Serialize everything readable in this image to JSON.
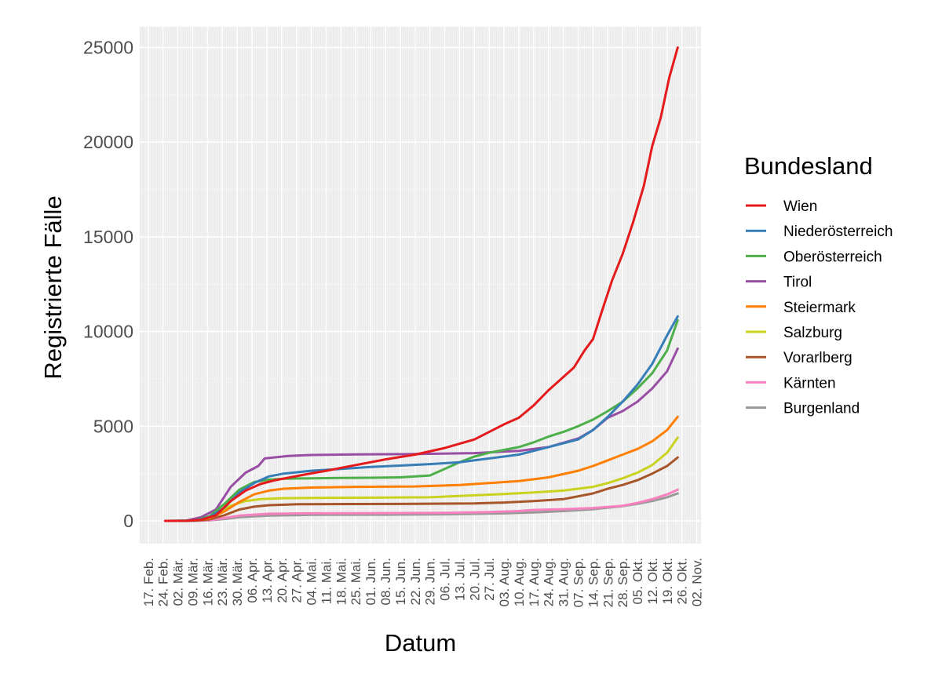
{
  "chart_data": {
    "type": "line",
    "title": "",
    "xlabel": "Datum",
    "ylabel": "Registrierte Fälle",
    "x_type": "date",
    "xlim": [
      "2020-02-13",
      "2020-11-04"
    ],
    "ylim": [
      -1200,
      26100
    ],
    "grid": true,
    "legend_position": "right",
    "legend_title": "Bundesland",
    "y_ticks": [
      0,
      5000,
      10000,
      15000,
      20000,
      25000
    ],
    "y_tick_labels": [
      "0",
      "5000",
      "10000",
      "15000",
      "20000",
      "25000"
    ],
    "x_ticks": [
      "2020-02-17",
      "2020-02-24",
      "2020-03-02",
      "2020-03-09",
      "2020-03-16",
      "2020-03-23",
      "2020-03-30",
      "2020-04-06",
      "2020-04-13",
      "2020-04-20",
      "2020-04-27",
      "2020-05-04",
      "2020-05-11",
      "2020-05-18",
      "2020-05-25",
      "2020-06-01",
      "2020-06-08",
      "2020-06-15",
      "2020-06-22",
      "2020-06-29",
      "2020-07-06",
      "2020-07-13",
      "2020-07-20",
      "2020-07-27",
      "2020-08-03",
      "2020-08-10",
      "2020-08-17",
      "2020-08-24",
      "2020-08-31",
      "2020-09-07",
      "2020-09-14",
      "2020-09-21",
      "2020-09-28",
      "2020-10-05",
      "2020-10-12",
      "2020-10-19",
      "2020-10-26",
      "2020-11-02"
    ],
    "x_tick_labels": [
      "17. Feb.",
      "24. Feb.",
      "02. Mär.",
      "09. Mär.",
      "16. Mär.",
      "23. Mär.",
      "30. Mär.",
      "06. Apr.",
      "13. Apr.",
      "20. Apr.",
      "27. Apr.",
      "04. Mai.",
      "11. Mai.",
      "18. Mai.",
      "25. Mai.",
      "01. Jun.",
      "08. Jun.",
      "15. Jun.",
      "22. Jun.",
      "29. Jun.",
      "06. Jul.",
      "13. Jul.",
      "20. Jul.",
      "27. Jul.",
      "03. Aug.",
      "10. Aug.",
      "17. Aug.",
      "24. Aug.",
      "31. Aug.",
      "07. Sep.",
      "14. Sep.",
      "21. Sep.",
      "28. Sep.",
      "05. Okt.",
      "12. Okt.",
      "19. Okt.",
      "26. Okt.",
      "02. Nov."
    ],
    "series": [
      {
        "name": "Wien",
        "color": "#e41a1c",
        "points": [
          [
            "2020-02-25",
            0
          ],
          [
            "2020-03-06",
            5
          ],
          [
            "2020-03-13",
            60
          ],
          [
            "2020-03-20",
            300
          ],
          [
            "2020-03-27",
            1050
          ],
          [
            "2020-04-03",
            1600
          ],
          [
            "2020-04-10",
            1950
          ],
          [
            "2020-04-17",
            2150
          ],
          [
            "2020-04-24",
            2300
          ],
          [
            "2020-05-01",
            2450
          ],
          [
            "2020-05-11",
            2650
          ],
          [
            "2020-05-25",
            2950
          ],
          [
            "2020-06-08",
            3250
          ],
          [
            "2020-06-22",
            3500
          ],
          [
            "2020-07-06",
            3850
          ],
          [
            "2020-07-20",
            4300
          ],
          [
            "2020-07-27",
            4700
          ],
          [
            "2020-08-03",
            5100
          ],
          [
            "2020-08-10",
            5450
          ],
          [
            "2020-08-17",
            6100
          ],
          [
            "2020-08-24",
            6900
          ],
          [
            "2020-08-31",
            7600
          ],
          [
            "2020-09-05",
            8100
          ],
          [
            "2020-09-10",
            9000
          ],
          [
            "2020-09-14",
            9600
          ],
          [
            "2020-09-18",
            11000
          ],
          [
            "2020-09-23",
            12700
          ],
          [
            "2020-09-28",
            14100
          ],
          [
            "2020-10-03",
            15800
          ],
          [
            "2020-10-08",
            17700
          ],
          [
            "2020-10-12",
            19800
          ],
          [
            "2020-10-16",
            21300
          ],
          [
            "2020-10-20",
            23400
          ],
          [
            "2020-10-24",
            25000
          ]
        ]
      },
      {
        "name": "Niederösterreich",
        "color": "#377eb8",
        "points": [
          [
            "2020-03-01",
            0
          ],
          [
            "2020-03-10",
            20
          ],
          [
            "2020-03-17",
            200
          ],
          [
            "2020-03-24",
            700
          ],
          [
            "2020-03-31",
            1500
          ],
          [
            "2020-04-07",
            2000
          ],
          [
            "2020-04-14",
            2350
          ],
          [
            "2020-04-21",
            2500
          ],
          [
            "2020-05-04",
            2650
          ],
          [
            "2020-05-18",
            2750
          ],
          [
            "2020-06-01",
            2850
          ],
          [
            "2020-06-15",
            2920
          ],
          [
            "2020-06-29",
            3000
          ],
          [
            "2020-07-13",
            3100
          ],
          [
            "2020-07-27",
            3300
          ],
          [
            "2020-08-10",
            3500
          ],
          [
            "2020-08-24",
            3900
          ],
          [
            "2020-09-07",
            4300
          ],
          [
            "2020-09-14",
            4800
          ],
          [
            "2020-09-21",
            5500
          ],
          [
            "2020-09-28",
            6300
          ],
          [
            "2020-10-05",
            7200
          ],
          [
            "2020-10-12",
            8300
          ],
          [
            "2020-10-19",
            9800
          ],
          [
            "2020-10-24",
            10800
          ]
        ]
      },
      {
        "name": "Oberösterreich",
        "color": "#4daf4a",
        "points": [
          [
            "2020-03-01",
            0
          ],
          [
            "2020-03-10",
            30
          ],
          [
            "2020-03-17",
            250
          ],
          [
            "2020-03-24",
            900
          ],
          [
            "2020-03-31",
            1650
          ],
          [
            "2020-04-07",
            2050
          ],
          [
            "2020-04-14",
            2180
          ],
          [
            "2020-04-21",
            2230
          ],
          [
            "2020-05-04",
            2250
          ],
          [
            "2020-05-18",
            2270
          ],
          [
            "2020-06-01",
            2280
          ],
          [
            "2020-06-15",
            2300
          ],
          [
            "2020-06-29",
            2400
          ],
          [
            "2020-07-06",
            2750
          ],
          [
            "2020-07-13",
            3100
          ],
          [
            "2020-07-20",
            3400
          ],
          [
            "2020-07-27",
            3600
          ],
          [
            "2020-08-03",
            3750
          ],
          [
            "2020-08-10",
            3900
          ],
          [
            "2020-08-17",
            4150
          ],
          [
            "2020-08-24",
            4450
          ],
          [
            "2020-08-31",
            4700
          ],
          [
            "2020-09-07",
            5000
          ],
          [
            "2020-09-14",
            5350
          ],
          [
            "2020-09-21",
            5800
          ],
          [
            "2020-09-28",
            6300
          ],
          [
            "2020-10-05",
            7000
          ],
          [
            "2020-10-12",
            7800
          ],
          [
            "2020-10-19",
            9000
          ],
          [
            "2020-10-24",
            10600
          ]
        ]
      },
      {
        "name": "Tirol",
        "color": "#984ea3",
        "points": [
          [
            "2020-02-25",
            0
          ],
          [
            "2020-03-06",
            20
          ],
          [
            "2020-03-13",
            200
          ],
          [
            "2020-03-20",
            600
          ],
          [
            "2020-03-27",
            1800
          ],
          [
            "2020-04-03",
            2550
          ],
          [
            "2020-04-09",
            2900
          ],
          [
            "2020-04-12",
            3300
          ],
          [
            "2020-04-16",
            3350
          ],
          [
            "2020-04-23",
            3430
          ],
          [
            "2020-05-04",
            3480
          ],
          [
            "2020-05-25",
            3510
          ],
          [
            "2020-06-22",
            3530
          ],
          [
            "2020-07-20",
            3580
          ],
          [
            "2020-08-10",
            3700
          ],
          [
            "2020-08-24",
            3900
          ],
          [
            "2020-09-07",
            4350
          ],
          [
            "2020-09-14",
            4800
          ],
          [
            "2020-09-21",
            5450
          ],
          [
            "2020-09-28",
            5800
          ],
          [
            "2020-10-05",
            6300
          ],
          [
            "2020-10-12",
            7000
          ],
          [
            "2020-10-19",
            7900
          ],
          [
            "2020-10-24",
            9100
          ]
        ]
      },
      {
        "name": "Steiermark",
        "color": "#ff7f00",
        "points": [
          [
            "2020-03-01",
            0
          ],
          [
            "2020-03-10",
            15
          ],
          [
            "2020-03-17",
            150
          ],
          [
            "2020-03-24",
            500
          ],
          [
            "2020-03-31",
            1000
          ],
          [
            "2020-04-07",
            1400
          ],
          [
            "2020-04-14",
            1600
          ],
          [
            "2020-04-21",
            1700
          ],
          [
            "2020-05-04",
            1760
          ],
          [
            "2020-05-25",
            1800
          ],
          [
            "2020-06-22",
            1820
          ],
          [
            "2020-07-13",
            1900
          ],
          [
            "2020-07-27",
            2000
          ],
          [
            "2020-08-10",
            2100
          ],
          [
            "2020-08-24",
            2300
          ],
          [
            "2020-09-07",
            2650
          ],
          [
            "2020-09-14",
            2900
          ],
          [
            "2020-09-21",
            3200
          ],
          [
            "2020-09-28",
            3500
          ],
          [
            "2020-10-05",
            3800
          ],
          [
            "2020-10-12",
            4200
          ],
          [
            "2020-10-19",
            4800
          ],
          [
            "2020-10-24",
            5500
          ]
        ]
      },
      {
        "name": "Salzburg",
        "color": "#c9d21f",
        "points": [
          [
            "2020-02-27",
            0
          ],
          [
            "2020-03-06",
            10
          ],
          [
            "2020-03-13",
            80
          ],
          [
            "2020-03-20",
            350
          ],
          [
            "2020-03-27",
            800
          ],
          [
            "2020-04-03",
            1050
          ],
          [
            "2020-04-10",
            1150
          ],
          [
            "2020-04-20",
            1200
          ],
          [
            "2020-05-11",
            1220
          ],
          [
            "2020-06-08",
            1230
          ],
          [
            "2020-06-29",
            1250
          ],
          [
            "2020-07-20",
            1350
          ],
          [
            "2020-08-03",
            1420
          ],
          [
            "2020-08-17",
            1500
          ],
          [
            "2020-08-31",
            1600
          ],
          [
            "2020-09-14",
            1800
          ],
          [
            "2020-09-21",
            2000
          ],
          [
            "2020-09-28",
            2250
          ],
          [
            "2020-10-05",
            2550
          ],
          [
            "2020-10-12",
            2950
          ],
          [
            "2020-10-19",
            3600
          ],
          [
            "2020-10-24",
            4400
          ]
        ]
      },
      {
        "name": "Vorarlberg",
        "color": "#a65628",
        "points": [
          [
            "2020-03-01",
            0
          ],
          [
            "2020-03-10",
            10
          ],
          [
            "2020-03-17",
            80
          ],
          [
            "2020-03-24",
            300
          ],
          [
            "2020-03-31",
            600
          ],
          [
            "2020-04-07",
            750
          ],
          [
            "2020-04-14",
            830
          ],
          [
            "2020-04-28",
            880
          ],
          [
            "2020-05-25",
            890
          ],
          [
            "2020-06-22",
            900
          ],
          [
            "2020-07-20",
            920
          ],
          [
            "2020-08-03",
            970
          ],
          [
            "2020-08-17",
            1050
          ],
          [
            "2020-08-31",
            1150
          ],
          [
            "2020-09-14",
            1450
          ],
          [
            "2020-09-21",
            1700
          ],
          [
            "2020-09-28",
            1900
          ],
          [
            "2020-10-05",
            2150
          ],
          [
            "2020-10-12",
            2500
          ],
          [
            "2020-10-19",
            2900
          ],
          [
            "2020-10-24",
            3350
          ]
        ]
      },
      {
        "name": "Kärnten",
        "color": "#f781bf",
        "points": [
          [
            "2020-03-01",
            0
          ],
          [
            "2020-03-10",
            5
          ],
          [
            "2020-03-17",
            40
          ],
          [
            "2020-03-24",
            150
          ],
          [
            "2020-03-31",
            280
          ],
          [
            "2020-04-14",
            380
          ],
          [
            "2020-05-04",
            400
          ],
          [
            "2020-06-08",
            410
          ],
          [
            "2020-07-06",
            430
          ],
          [
            "2020-07-27",
            470
          ],
          [
            "2020-08-10",
            520
          ],
          [
            "2020-08-17",
            580
          ],
          [
            "2020-08-31",
            620
          ],
          [
            "2020-09-14",
            680
          ],
          [
            "2020-09-28",
            800
          ],
          [
            "2020-10-05",
            950
          ],
          [
            "2020-10-12",
            1150
          ],
          [
            "2020-10-19",
            1400
          ],
          [
            "2020-10-24",
            1650
          ]
        ]
      },
      {
        "name": "Burgenland",
        "color": "#999999",
        "points": [
          [
            "2020-03-01",
            0
          ],
          [
            "2020-03-10",
            5
          ],
          [
            "2020-03-17",
            30
          ],
          [
            "2020-03-24",
            100
          ],
          [
            "2020-03-31",
            200
          ],
          [
            "2020-04-14",
            280
          ],
          [
            "2020-05-04",
            320
          ],
          [
            "2020-06-08",
            330
          ],
          [
            "2020-07-06",
            350
          ],
          [
            "2020-08-03",
            400
          ],
          [
            "2020-08-17",
            450
          ],
          [
            "2020-08-31",
            520
          ],
          [
            "2020-09-14",
            620
          ],
          [
            "2020-09-28",
            780
          ],
          [
            "2020-10-05",
            900
          ],
          [
            "2020-10-12",
            1050
          ],
          [
            "2020-10-19",
            1250
          ],
          [
            "2020-10-24",
            1450
          ]
        ]
      }
    ]
  }
}
